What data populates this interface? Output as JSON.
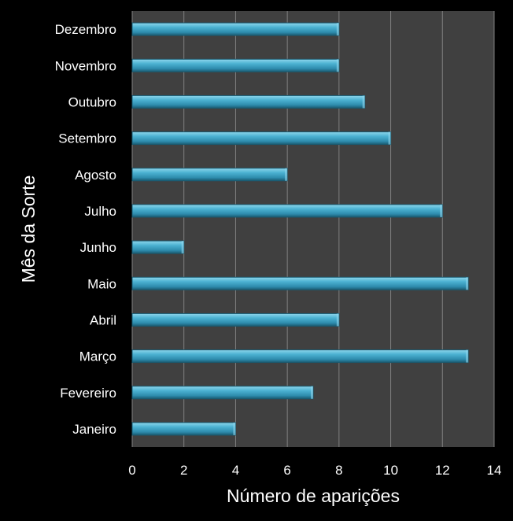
{
  "chart_data": {
    "type": "bar",
    "orientation": "horizontal",
    "categories": [
      "Janeiro",
      "Fevereiro",
      "Março",
      "Abril",
      "Maio",
      "Junho",
      "Julho",
      "Agosto",
      "Setembro",
      "Outubro",
      "Novembro",
      "Dezembro"
    ],
    "values": [
      4,
      7,
      13,
      8,
      13,
      2,
      12,
      6,
      10,
      9,
      8,
      8
    ],
    "xlabel": "Número de aparições",
    "ylabel": "Mês da Sorte",
    "xlim": [
      0,
      14
    ],
    "xticks": [
      0,
      2,
      4,
      6,
      8,
      10,
      12,
      14
    ],
    "grid": "vertical",
    "legend": "none"
  },
  "colors": {
    "page_background": "#000000",
    "plot_background": "#404040",
    "gridline": "#808080",
    "bar": "#3a9fc0",
    "bar_highlight": "#8fd6ec",
    "bar_shadow": "#1a5a70",
    "text": "#ffffff"
  }
}
